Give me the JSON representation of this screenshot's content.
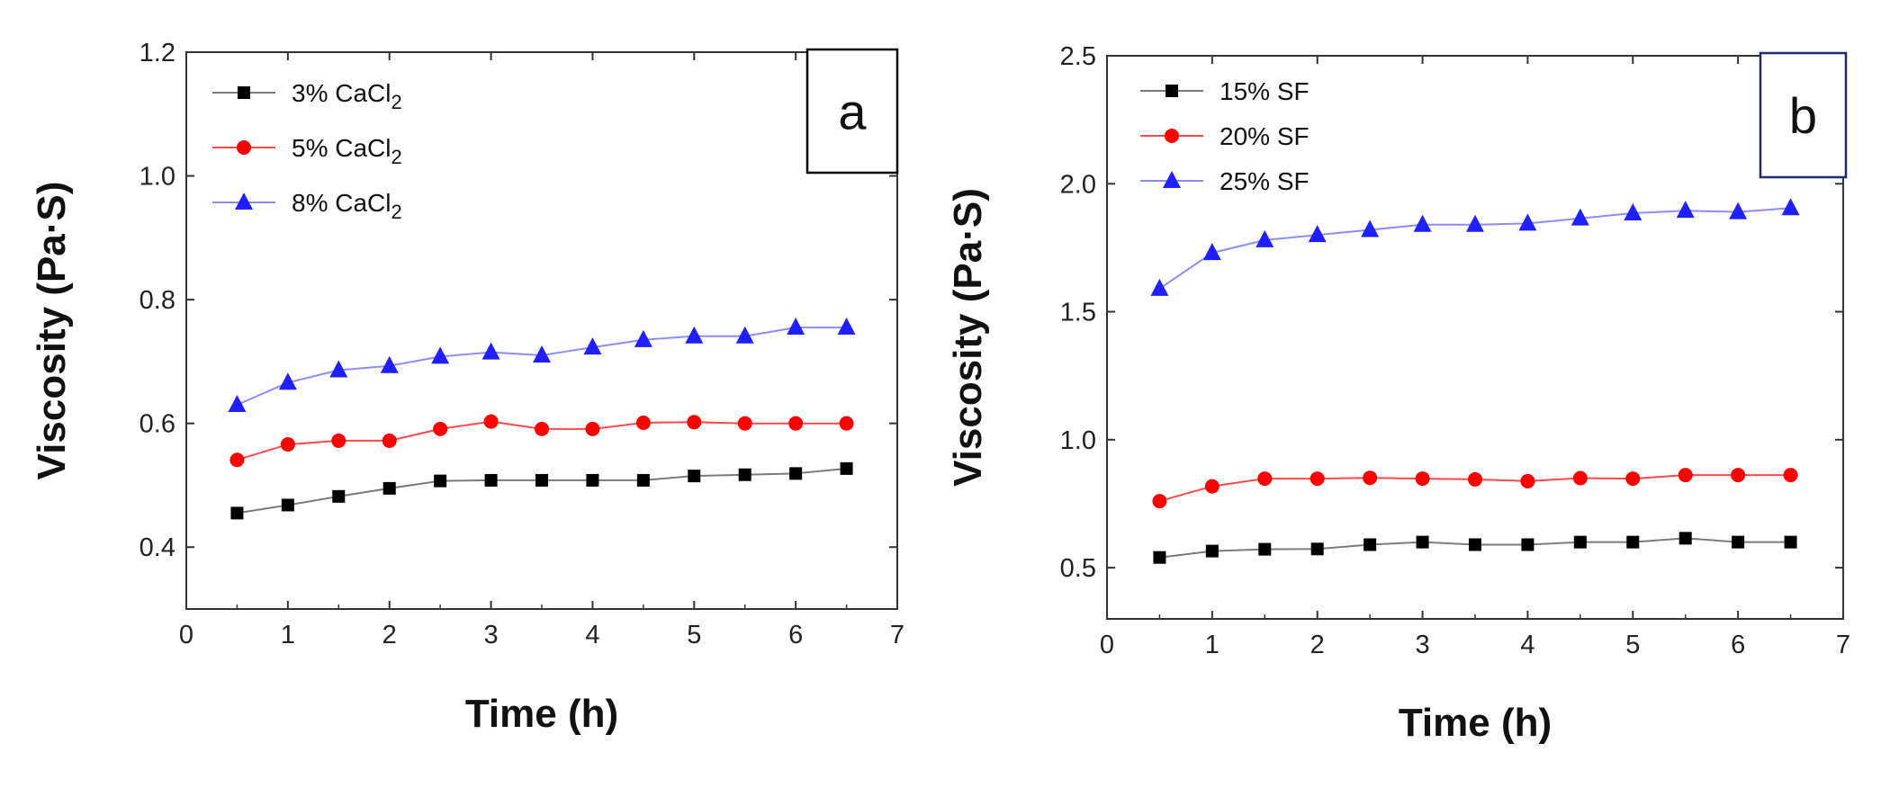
{
  "chart_data": [
    {
      "type": "line",
      "panel_label": "a",
      "xlabel": "Time (h)",
      "ylabel": "Viscosity (Pa·S)",
      "xlim": [
        0,
        7
      ],
      "ylim": [
        0.3,
        1.2
      ],
      "xticks": [
        0,
        1,
        2,
        3,
        4,
        5,
        6,
        7
      ],
      "yticks": [
        0.4,
        0.6,
        0.8,
        1.0,
        1.2
      ],
      "ytick_labels": [
        "0.4",
        "0.6",
        "0.8",
        "1.0",
        "1.2"
      ],
      "grid": false,
      "legend_position": "top-left",
      "x": [
        0.5,
        1.0,
        1.5,
        2.0,
        2.5,
        3.0,
        3.5,
        4.0,
        4.5,
        5.0,
        5.5,
        6.0,
        6.5
      ],
      "series": [
        {
          "name": "3% CaCl",
          "name_sub": "2",
          "marker": "square",
          "color": "#000000",
          "line_color": "#7a7a7a",
          "values": [
            0.455,
            0.468,
            0.482,
            0.495,
            0.507,
            0.508,
            0.508,
            0.508,
            0.508,
            0.515,
            0.517,
            0.519,
            0.527
          ]
        },
        {
          "name": "5% CaCl",
          "name_sub": "2",
          "marker": "circle",
          "color": "#ff0000",
          "line_color": "#ff4a4a",
          "values": [
            0.541,
            0.566,
            0.572,
            0.572,
            0.591,
            0.603,
            0.591,
            0.591,
            0.601,
            0.602,
            0.6,
            0.6,
            0.6
          ]
        },
        {
          "name": "8% CaCl",
          "name_sub": "2",
          "marker": "triangle",
          "color": "#1f1fff",
          "line_color": "#8c8cff",
          "values": [
            0.63,
            0.666,
            0.686,
            0.693,
            0.708,
            0.715,
            0.71,
            0.723,
            0.735,
            0.741,
            0.741,
            0.755,
            0.755
          ]
        }
      ]
    },
    {
      "type": "line",
      "panel_label": "b",
      "xlabel": "Time (h)",
      "ylabel": "Viscosity (Pa·S)",
      "xlim": [
        0,
        7
      ],
      "ylim": [
        0.3,
        2.5
      ],
      "xticks": [
        0,
        1,
        2,
        3,
        4,
        5,
        6,
        7
      ],
      "yticks": [
        0.5,
        1.0,
        1.5,
        2.0,
        2.5
      ],
      "ytick_labels": [
        "0.5",
        "1.0",
        "1.5",
        "2.0",
        "2.5"
      ],
      "grid": false,
      "legend_position": "top-left",
      "x": [
        0.5,
        1.0,
        1.5,
        2.0,
        2.5,
        3.0,
        3.5,
        4.0,
        4.5,
        5.0,
        5.5,
        6.0,
        6.5
      ],
      "series": [
        {
          "name": "15% SF",
          "name_sub": "",
          "marker": "square",
          "color": "#000000",
          "line_color": "#7a7a7a",
          "values": [
            0.54,
            0.565,
            0.572,
            0.573,
            0.59,
            0.6,
            0.59,
            0.59,
            0.6,
            0.6,
            0.615,
            0.6,
            0.6
          ]
        },
        {
          "name": "20% SF",
          "name_sub": "",
          "marker": "circle",
          "color": "#ff0000",
          "line_color": "#ff4a4a",
          "values": [
            0.76,
            0.818,
            0.848,
            0.848,
            0.851,
            0.848,
            0.845,
            0.838,
            0.85,
            0.848,
            0.862,
            0.862,
            0.862
          ]
        },
        {
          "name": "25% SF",
          "name_sub": "",
          "marker": "triangle",
          "color": "#1f1fff",
          "line_color": "#8c8cff",
          "values": [
            1.59,
            1.73,
            1.78,
            1.8,
            1.82,
            1.84,
            1.84,
            1.845,
            1.865,
            1.885,
            1.895,
            1.89,
            1.905
          ]
        }
      ]
    }
  ]
}
